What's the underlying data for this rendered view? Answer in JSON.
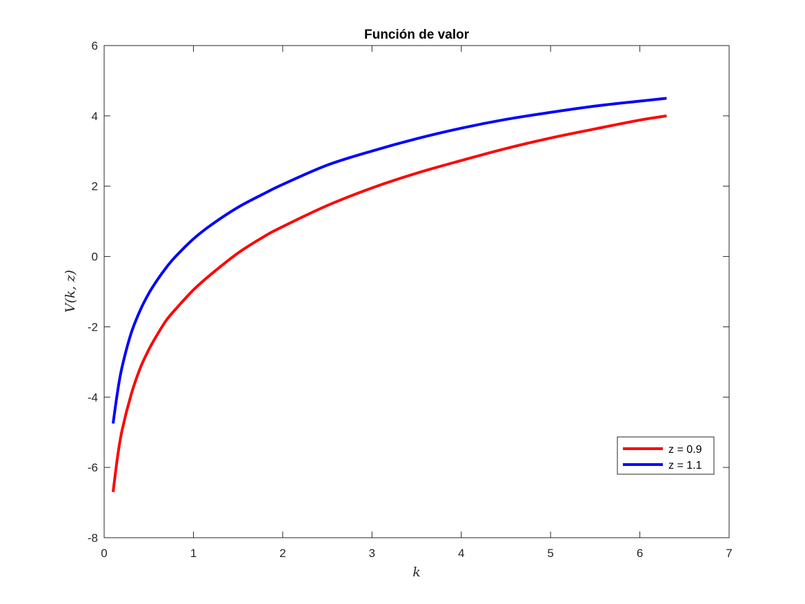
{
  "chart_data": {
    "type": "line",
    "title": "Función de valor",
    "xlabel": "k",
    "ylabel": "V(k, z)",
    "xlim": [
      0,
      7
    ],
    "ylim": [
      -8,
      6
    ],
    "xticks": [
      "0",
      "1",
      "2",
      "3",
      "4",
      "5",
      "6",
      "7"
    ],
    "yticks": [
      "-8",
      "-6",
      "-4",
      "-2",
      "0",
      "2",
      "4",
      "6"
    ],
    "grid": false,
    "legend_position": "bottom-right",
    "series": [
      {
        "name": "z = 0.9",
        "color": "#ff0000",
        "x": [
          0.1,
          0.15,
          0.2,
          0.3,
          0.4,
          0.5,
          0.6,
          0.7,
          0.8,
          1.0,
          1.2,
          1.5,
          1.8,
          2.0,
          2.5,
          3.0,
          3.5,
          4.0,
          4.5,
          5.0,
          5.5,
          6.0,
          6.3
        ],
        "y": [
          -6.7,
          -5.7,
          -4.95,
          -3.95,
          -3.2,
          -2.65,
          -2.2,
          -1.8,
          -1.5,
          -0.95,
          -0.5,
          0.1,
          0.58,
          0.85,
          1.45,
          1.95,
          2.37,
          2.73,
          3.07,
          3.37,
          3.63,
          3.88,
          4.0
        ]
      },
      {
        "name": "z = 1.1",
        "color": "#0000ff",
        "x": [
          0.1,
          0.15,
          0.2,
          0.3,
          0.4,
          0.5,
          0.6,
          0.7,
          0.8,
          1.0,
          1.2,
          1.5,
          1.8,
          2.0,
          2.5,
          3.0,
          3.5,
          4.0,
          4.5,
          5.0,
          5.5,
          6.0,
          6.3
        ],
        "y": [
          -4.75,
          -3.85,
          -3.15,
          -2.2,
          -1.55,
          -1.05,
          -0.65,
          -0.3,
          0.0,
          0.5,
          0.9,
          1.4,
          1.8,
          2.05,
          2.6,
          3.0,
          3.35,
          3.65,
          3.9,
          4.1,
          4.28,
          4.42,
          4.5
        ]
      }
    ]
  }
}
